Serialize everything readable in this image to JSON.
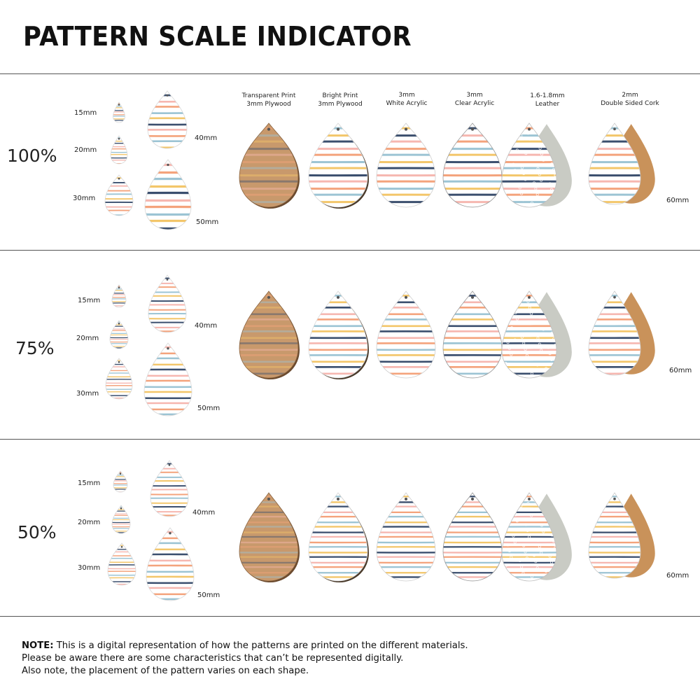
{
  "title": "PATTERN SCALE INDICATOR",
  "materials": [
    {
      "line1": "Transparent Print",
      "line2": "3mm Plywood",
      "kind": "wood"
    },
    {
      "line1": "Bright Print",
      "line2": "3mm Plywood",
      "kind": "bright"
    },
    {
      "line1": "3mm",
      "line2": "White Acrylic",
      "kind": "white"
    },
    {
      "line1": "3mm",
      "line2": "Clear Acrylic",
      "kind": "clear"
    },
    {
      "line1": "1.6-1.8mm",
      "line2": "Leather",
      "kind": "leather"
    },
    {
      "line1": "2mm",
      "line2": "Double Sided Cork",
      "kind": "cork"
    }
  ],
  "sections": [
    {
      "scale": "100%",
      "size_15": "15mm",
      "size_20": "20mm",
      "size_30": "30mm",
      "size_40": "40mm",
      "size_50": "50mm",
      "size_60": "60mm"
    },
    {
      "scale": "75%",
      "size_15": "15mm",
      "size_20": "20mm",
      "size_30": "30mm",
      "size_40": "40mm",
      "size_50": "50mm",
      "size_60": "60mm"
    },
    {
      "scale": "50%",
      "size_15": "15mm",
      "size_20": "20mm",
      "size_30": "30mm",
      "size_40": "40mm",
      "size_50": "50mm",
      "size_60": "60mm"
    }
  ],
  "note": {
    "label": "NOTE:",
    "line1": " This is a digital representation of how the patterns are printed on the different materials.",
    "line2": "Please be aware there are some characteristics that can’t be represented digitally.",
    "line3": "Also note, the placement of the pattern varies on each shape."
  },
  "colors": {
    "stripes": [
      "#f4a37c",
      "#9cc4d4",
      "#f3c66a",
      "#3b4f6e",
      "#f6b7b0"
    ],
    "wood": "#c8996c",
    "cork": "#c9925a",
    "leather_back": "#c9cbc4",
    "rule": "#555555"
  }
}
